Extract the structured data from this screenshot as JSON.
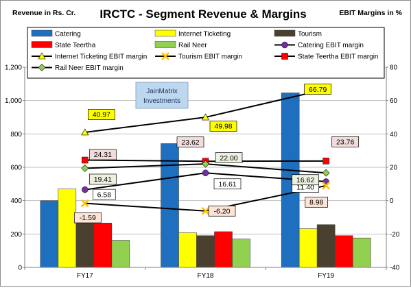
{
  "chart_data": {
    "type": "bar",
    "title": "IRCTC - Segment Revenue & Margins",
    "left_axis_label": "Revenue in Rs. Cr.",
    "right_axis_label": "EBIT Margins in %",
    "watermark": "JainMatrix Investments",
    "categories": [
      "FY17",
      "FY18",
      "FY19"
    ],
    "ylim": [
      0,
      1200
    ],
    "y_ticks": [
      "0",
      "200",
      "400",
      "600",
      "800",
      "1,000",
      "1,200"
    ],
    "y2lim": [
      -40,
      80
    ],
    "y2_ticks": [
      "-40",
      "-20",
      "0",
      "20",
      "40",
      "60",
      "80"
    ],
    "legend_position": "top",
    "grid": true,
    "bar_series": [
      {
        "name": "Catering",
        "color": "#1F6FBF",
        "values": [
          400,
          742,
          1046
        ]
      },
      {
        "name": "Internet Ticketing",
        "color": "#FFFF00",
        "values": [
          470,
          208,
          232
        ]
      },
      {
        "name": "Tourism",
        "color": "#4A4030",
        "values": [
          268,
          190,
          256
        ]
      },
      {
        "name": "State Teertha",
        "color": "#FF0000",
        "values": [
          266,
          214,
          190
        ]
      },
      {
        "name": "Rail Neer",
        "color": "#92D050",
        "values": [
          162,
          170,
          176
        ]
      }
    ],
    "line_series": [
      {
        "name": "Catering EBIT margin",
        "color": "#7030A0",
        "marker": "circle",
        "values": [
          6.58,
          16.61,
          11.4
        ],
        "labels": [
          "6.58",
          "16.61",
          "11.40"
        ],
        "label_bg": "#FFFFFF"
      },
      {
        "name": "Internet Ticketing EBIT margin",
        "color": "#FFFF00",
        "marker": "triangle",
        "values": [
          40.97,
          49.98,
          66.79
        ],
        "labels": [
          "40.97",
          "49.98",
          "66.79"
        ],
        "label_bg": "#FFFF00"
      },
      {
        "name": "Tourism EBIT margin",
        "color": "#FFC000",
        "marker": "x",
        "values": [
          -1.59,
          -6.2,
          8.98
        ],
        "labels": [
          "-1.59",
          "-6.20",
          "8.98"
        ],
        "label_bg": "#FCE4D6"
      },
      {
        "name": "State Teertha EBIT margin",
        "color": "#FF0000",
        "marker": "square",
        "values": [
          24.31,
          23.62,
          23.76
        ],
        "labels": [
          "24.31",
          "23.62",
          "23.76"
        ],
        "label_bg": "#F2DCDB"
      },
      {
        "name": "Rail Neer EBIT margin",
        "color": "#92D050",
        "marker": "diamond",
        "values": [
          19.41,
          22.0,
          16.62
        ],
        "labels": [
          "19.41",
          "22.00",
          "16.62"
        ],
        "label_bg": "#EBF1DE"
      }
    ]
  }
}
